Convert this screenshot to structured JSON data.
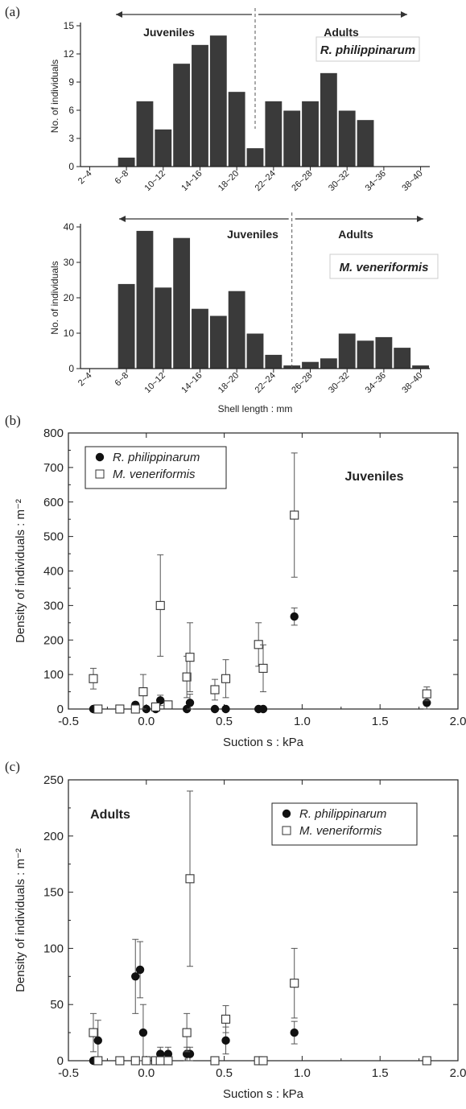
{
  "panel_labels": [
    "(a)",
    "(b)",
    "(c)"
  ],
  "chart_data": [
    {
      "type": "bar",
      "panel": "(a)",
      "species_label": "R. philippinarum",
      "group_labels": {
        "left": "Juveniles",
        "right": "Adults"
      },
      "ylabel": "No. of individuals",
      "xlabel": "",
      "categories": [
        "2-4",
        "4-6",
        "6-8",
        "8-10",
        "10-12",
        "12-14",
        "14-16",
        "16-18",
        "18-20",
        "20-22",
        "22-24",
        "24-26",
        "26-28",
        "28-30",
        "30-32",
        "32-34",
        "34-36",
        "36-38",
        "38-40"
      ],
      "tick_labels": [
        "2~4",
        "6~8",
        "10~12",
        "14~16",
        "18~20",
        "22~24",
        "26~28",
        "30~32",
        "34~36",
        "38~40"
      ],
      "values": [
        0,
        0,
        1,
        7,
        4,
        11,
        13,
        14,
        8,
        2,
        7,
        6,
        7,
        10,
        6,
        5,
        0,
        0,
        0
      ],
      "ylim": [
        0,
        15
      ],
      "yticks": [
        "0",
        "3",
        "6",
        "9",
        "12",
        "15"
      ],
      "divider_after_category": "20-22",
      "bar_color": "#3a3a3a"
    },
    {
      "type": "bar",
      "species_label": "M. veneriformis",
      "group_labels": {
        "left": "Juveniles",
        "right": "Adults"
      },
      "ylabel": "No. of individuals",
      "xlabel": "Shell length : mm",
      "categories": [
        "2-4",
        "4-6",
        "6-8",
        "8-10",
        "10-12",
        "12-14",
        "14-16",
        "16-18",
        "18-20",
        "20-22",
        "22-24",
        "24-26",
        "26-28",
        "28-30",
        "30-32",
        "32-34",
        "34-36",
        "36-38",
        "38-40"
      ],
      "tick_labels": [
        "2~4",
        "6~8",
        "10~12",
        "14~16",
        "18~20",
        "22~24",
        "26~28",
        "30~32",
        "34~36",
        "38~40"
      ],
      "values": [
        0,
        0,
        24,
        39,
        23,
        37,
        17,
        15,
        22,
        10,
        4,
        1,
        2,
        3,
        10,
        8,
        9,
        6,
        1
      ],
      "ylim": [
        0,
        40
      ],
      "yticks": [
        "0",
        "10",
        "20",
        "30",
        "40"
      ],
      "divider_after_category": "24-26",
      "bar_color": "#3a3a3a"
    },
    {
      "type": "scatter",
      "panel": "(b)",
      "annotation": "Juveniles",
      "xlabel": "Suction s : kPa",
      "ylabel": "Density of individuals : m⁻²",
      "xlim": [
        -0.5,
        2.0
      ],
      "ylim": [
        0,
        800
      ],
      "xticks": [
        "-0.5",
        "0.0",
        "0.5",
        "1.0",
        "1.5",
        "2.0"
      ],
      "yticks": [
        "0",
        "100",
        "200",
        "300",
        "400",
        "500",
        "600",
        "700",
        "800"
      ],
      "legend_position": "top-left",
      "series": [
        {
          "name": "R. philippinarum",
          "marker": "filled-circle",
          "points": [
            {
              "x": -0.34,
              "y": 0
            },
            {
              "x": -0.31,
              "y": 0
            },
            {
              "x": -0.17,
              "y": 0
            },
            {
              "x": -0.07,
              "y": 12
            },
            {
              "x": 0.0,
              "y": 0
            },
            {
              "x": 0.06,
              "y": 0
            },
            {
              "x": 0.09,
              "y": 25,
              "err": 15
            },
            {
              "x": 0.26,
              "y": 0
            },
            {
              "x": 0.28,
              "y": 18,
              "err": 25
            },
            {
              "x": 0.44,
              "y": 0
            },
            {
              "x": 0.51,
              "y": 0
            },
            {
              "x": 0.72,
              "y": 0
            },
            {
              "x": 0.75,
              "y": 0
            },
            {
              "x": 0.95,
              "y": 268,
              "err": 25
            },
            {
              "x": 1.8,
              "y": 18,
              "err": 18
            }
          ]
        },
        {
          "name": "M. veneriformis",
          "marker": "open-square",
          "points": [
            {
              "x": -0.34,
              "y": 88,
              "err": 30
            },
            {
              "x": -0.31,
              "y": 0
            },
            {
              "x": -0.17,
              "y": 0
            },
            {
              "x": -0.07,
              "y": 0
            },
            {
              "x": -0.02,
              "y": 50,
              "err": 50
            },
            {
              "x": 0.06,
              "y": 6
            },
            {
              "x": 0.09,
              "y": 300,
              "err": 147
            },
            {
              "x": 0.14,
              "y": 12
            },
            {
              "x": 0.26,
              "y": 93,
              "err": 60
            },
            {
              "x": 0.28,
              "y": 150,
              "err": 100
            },
            {
              "x": 0.44,
              "y": 56,
              "err": 30
            },
            {
              "x": 0.51,
              "y": 88,
              "err": 55
            },
            {
              "x": 0.72,
              "y": 187,
              "err": 63
            },
            {
              "x": 0.75,
              "y": 118,
              "err": 68
            },
            {
              "x": 0.95,
              "y": 562,
              "err": 180
            },
            {
              "x": 1.8,
              "y": 44,
              "err": 20
            }
          ]
        }
      ]
    },
    {
      "type": "scatter",
      "panel": "(c)",
      "annotation": "Adults",
      "xlabel": "Suction s : kPa",
      "ylabel": "Density of individuals : m⁻²",
      "xlim": [
        -0.5,
        2.0
      ],
      "ylim": [
        0,
        250
      ],
      "xticks": [
        "-0.5",
        "0.0",
        "0.5",
        "1.0",
        "1.5",
        "2.0"
      ],
      "yticks": [
        "0",
        "50",
        "100",
        "150",
        "200",
        "250"
      ],
      "legend_position": "top-right",
      "series": [
        {
          "name": "R. philippinarum",
          "marker": "filled-circle",
          "points": [
            {
              "x": -0.34,
              "y": 0
            },
            {
              "x": -0.31,
              "y": 18,
              "err": 18
            },
            {
              "x": -0.07,
              "y": 75,
              "err": 33
            },
            {
              "x": -0.04,
              "y": 81,
              "err": 25
            },
            {
              "x": -0.02,
              "y": 25,
              "err": 25
            },
            {
              "x": 0.09,
              "y": 6,
              "err": 6
            },
            {
              "x": 0.14,
              "y": 6,
              "err": 6
            },
            {
              "x": 0.26,
              "y": 6,
              "err": 6
            },
            {
              "x": 0.28,
              "y": 6,
              "err": 6
            },
            {
              "x": 0.51,
              "y": 18,
              "err": 12
            },
            {
              "x": 0.95,
              "y": 25,
              "err": 10
            }
          ]
        },
        {
          "name": "M. veneriformis",
          "marker": "open-square",
          "points": [
            {
              "x": -0.34,
              "y": 25,
              "err": 17
            },
            {
              "x": -0.31,
              "y": 0
            },
            {
              "x": -0.17,
              "y": 0
            },
            {
              "x": -0.07,
              "y": 0
            },
            {
              "x": 0.0,
              "y": 0
            },
            {
              "x": 0.06,
              "y": 0
            },
            {
              "x": 0.09,
              "y": 0
            },
            {
              "x": 0.14,
              "y": 0
            },
            {
              "x": 0.26,
              "y": 25,
              "err": 17
            },
            {
              "x": 0.28,
              "y": 162,
              "err": 78
            },
            {
              "x": 0.44,
              "y": 0
            },
            {
              "x": 0.51,
              "y": 37,
              "err": 12
            },
            {
              "x": 0.72,
              "y": 0
            },
            {
              "x": 0.75,
              "y": 0
            },
            {
              "x": 0.95,
              "y": 69,
              "err": 31
            },
            {
              "x": 1.8,
              "y": 0
            }
          ]
        }
      ]
    }
  ]
}
